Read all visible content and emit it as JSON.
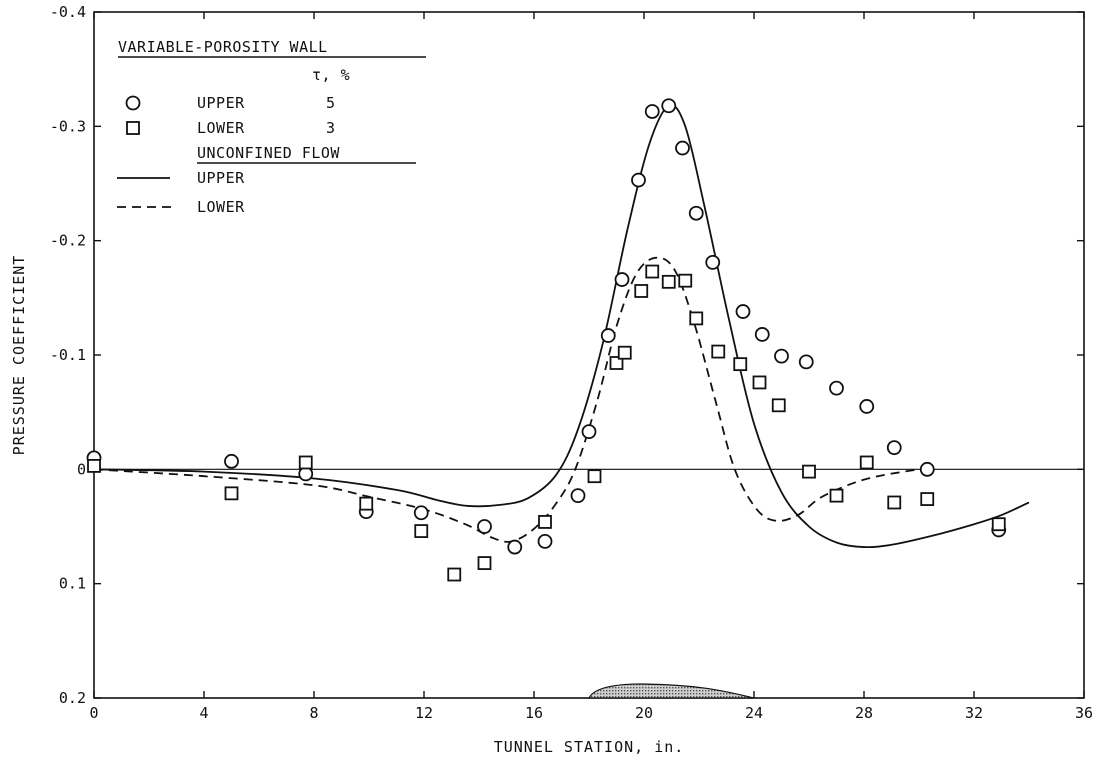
{
  "chart_data": {
    "type": "scatter",
    "title": "",
    "xlabel": "TUNNEL STATION, in.",
    "ylabel": "PRESSURE COEFFICIENT",
    "xlim": [
      0,
      36
    ],
    "ylim": [
      0.2,
      -0.4
    ],
    "y_axis_inverted": true,
    "grid": false,
    "x_ticks": [
      {
        "value": 0,
        "label": "0"
      },
      {
        "value": 4,
        "label": "4"
      },
      {
        "value": 8,
        "label": "8"
      },
      {
        "value": 12,
        "label": "12"
      },
      {
        "value": 16,
        "label": "16"
      },
      {
        "value": 20,
        "label": "20"
      },
      {
        "value": 24,
        "label": "24"
      },
      {
        "value": 28,
        "label": "28"
      },
      {
        "value": 32,
        "label": "32"
      },
      {
        "value": 36,
        "label": "36"
      }
    ],
    "y_ticks": [
      {
        "value": -0.4,
        "label": "-0.4"
      },
      {
        "value": -0.3,
        "label": "-0.3"
      },
      {
        "value": -0.2,
        "label": "-0.2"
      },
      {
        "value": -0.1,
        "label": "-0.1"
      },
      {
        "value": 0,
        "label": "0"
      },
      {
        "value": 0.1,
        "label": "0.1"
      },
      {
        "value": 0.2,
        "label": "0.2"
      }
    ],
    "legend": {
      "placement": "top-left",
      "group1_title": "VARIABLE-POROSITY WALL",
      "group1_column_header": "τ, %",
      "group2_title": "UNCONFINED FLOW"
    },
    "series": [
      {
        "name": "UPPER",
        "legend_value": "5",
        "kind": "points",
        "marker": "circle",
        "points": [
          [
            0,
            -0.01
          ],
          [
            5,
            -0.007
          ],
          [
            7.7,
            0.004
          ],
          [
            9.9,
            0.037
          ],
          [
            11.9,
            0.038
          ],
          [
            14.2,
            0.05
          ],
          [
            15.3,
            0.068
          ],
          [
            16.4,
            0.063
          ],
          [
            17.6,
            0.023
          ],
          [
            18.0,
            -0.033
          ],
          [
            18.7,
            -0.117
          ],
          [
            19.2,
            -0.166
          ],
          [
            19.8,
            -0.253
          ],
          [
            20.3,
            -0.313
          ],
          [
            20.9,
            -0.318
          ],
          [
            21.4,
            -0.281
          ],
          [
            21.9,
            -0.224
          ],
          [
            22.5,
            -0.181
          ],
          [
            23.6,
            -0.138
          ],
          [
            24.3,
            -0.118
          ],
          [
            25.0,
            -0.099
          ],
          [
            25.9,
            -0.094
          ],
          [
            27.0,
            -0.071
          ],
          [
            28.1,
            -0.055
          ],
          [
            29.1,
            -0.019
          ],
          [
            30.3,
            0.0
          ],
          [
            32.9,
            0.053
          ]
        ]
      },
      {
        "name": "LOWER",
        "legend_value": "3",
        "kind": "points",
        "marker": "square",
        "points": [
          [
            0,
            -0.003
          ],
          [
            5,
            0.021
          ],
          [
            7.7,
            -0.006
          ],
          [
            9.9,
            0.03
          ],
          [
            11.9,
            0.054
          ],
          [
            13.1,
            0.092
          ],
          [
            14.2,
            0.082
          ],
          [
            16.4,
            0.046
          ],
          [
            18.2,
            0.006
          ],
          [
            19.0,
            -0.093
          ],
          [
            19.3,
            -0.102
          ],
          [
            19.9,
            -0.156
          ],
          [
            20.3,
            -0.173
          ],
          [
            20.9,
            -0.164
          ],
          [
            21.5,
            -0.165
          ],
          [
            21.9,
            -0.132
          ],
          [
            22.7,
            -0.103
          ],
          [
            23.5,
            -0.092
          ],
          [
            24.2,
            -0.076
          ],
          [
            24.9,
            -0.056
          ],
          [
            26.0,
            0.002
          ],
          [
            27.0,
            0.023
          ],
          [
            28.1,
            -0.006
          ],
          [
            29.1,
            0.029
          ],
          [
            30.3,
            0.026
          ],
          [
            32.9,
            0.048
          ]
        ]
      },
      {
        "name": "UPPER",
        "kind": "line",
        "style": "solid",
        "points": [
          [
            0,
            0.0
          ],
          [
            4,
            0.002
          ],
          [
            8,
            0.008
          ],
          [
            11,
            0.018
          ],
          [
            12.5,
            0.027
          ],
          [
            13.6,
            0.032
          ],
          [
            14.8,
            0.031
          ],
          [
            15.8,
            0.025
          ],
          [
            16.8,
            0.005
          ],
          [
            17.6,
            -0.035
          ],
          [
            18.5,
            -0.11
          ],
          [
            19.4,
            -0.21
          ],
          [
            20.2,
            -0.285
          ],
          [
            20.9,
            -0.318
          ],
          [
            21.5,
            -0.3
          ],
          [
            22.2,
            -0.23
          ],
          [
            23.1,
            -0.13
          ],
          [
            24.0,
            -0.04
          ],
          [
            25.0,
            0.02
          ],
          [
            26.0,
            0.05
          ],
          [
            27.0,
            0.064
          ],
          [
            28.0,
            0.068
          ],
          [
            29.0,
            0.066
          ],
          [
            30.5,
            0.058
          ],
          [
            32.0,
            0.048
          ],
          [
            33.0,
            0.04
          ],
          [
            34.0,
            0.029
          ]
        ]
      },
      {
        "name": "LOWER",
        "kind": "line",
        "style": "dashed",
        "points": [
          [
            0,
            0.0
          ],
          [
            4,
            0.006
          ],
          [
            8,
            0.014
          ],
          [
            10,
            0.024
          ],
          [
            12,
            0.035
          ],
          [
            13.5,
            0.048
          ],
          [
            14.5,
            0.06
          ],
          [
            15.2,
            0.063
          ],
          [
            16.0,
            0.052
          ],
          [
            16.8,
            0.03
          ],
          [
            17.5,
            0.0
          ],
          [
            18.3,
            -0.06
          ],
          [
            19.0,
            -0.125
          ],
          [
            19.7,
            -0.17
          ],
          [
            20.4,
            -0.185
          ],
          [
            21.1,
            -0.175
          ],
          [
            21.8,
            -0.13
          ],
          [
            22.6,
            -0.06
          ],
          [
            23.3,
            0.0
          ],
          [
            24.1,
            0.035
          ],
          [
            24.8,
            0.045
          ],
          [
            25.6,
            0.04
          ],
          [
            26.4,
            0.025
          ],
          [
            27.5,
            0.013
          ],
          [
            28.5,
            0.006
          ],
          [
            30.0,
            0.0
          ]
        ]
      }
    ],
    "annotations": [
      {
        "type": "airfoil-profile",
        "x_from": 18,
        "x_to": 24,
        "at_y": 0.2,
        "fill": "#7a7a7a"
      }
    ]
  }
}
